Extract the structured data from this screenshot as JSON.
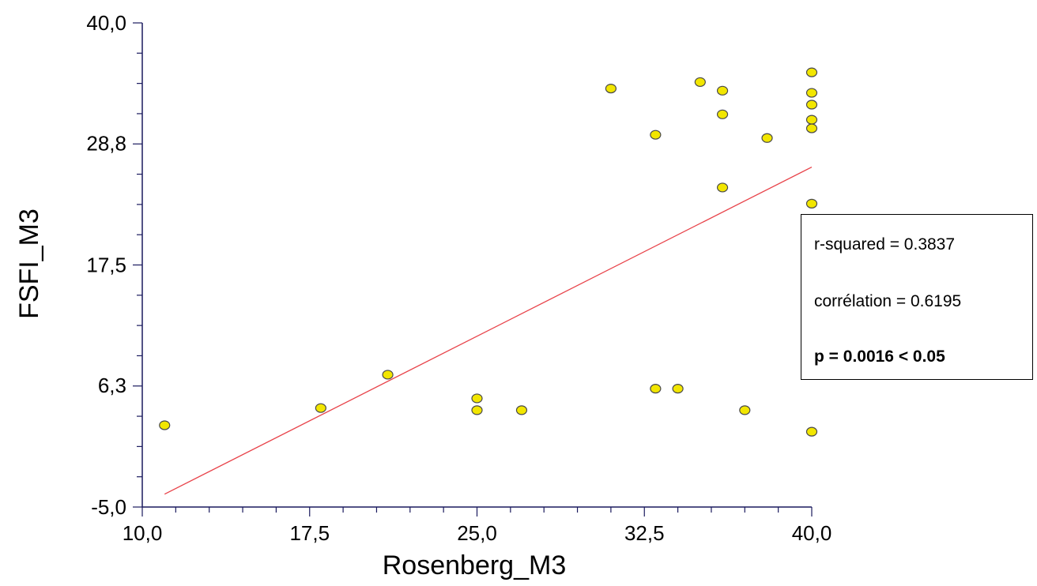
{
  "chart_data": {
    "type": "scatter",
    "xlabel": "Rosenberg_M3",
    "ylabel": "FSFI_M3",
    "xlim": [
      10.0,
      40.0
    ],
    "ylim": [
      -5.0,
      40.0
    ],
    "x_ticks": [
      "10,0",
      "17,5",
      "25,0",
      "32,5",
      "40,0"
    ],
    "y_ticks": [
      "40,0",
      "28,8",
      "17,5",
      "6,3",
      "-5,0"
    ],
    "x_tick_values": [
      10.0,
      17.5,
      25.0,
      32.5,
      40.0
    ],
    "y_tick_values": [
      40.0,
      28.8,
      17.5,
      6.3,
      -5.0
    ],
    "grid": false,
    "points": [
      {
        "x": 11.0,
        "y": 2.6
      },
      {
        "x": 18.0,
        "y": 4.2
      },
      {
        "x": 21.0,
        "y": 7.3
      },
      {
        "x": 25.0,
        "y": 5.1
      },
      {
        "x": 25.0,
        "y": 4.0
      },
      {
        "x": 27.0,
        "y": 4.0
      },
      {
        "x": 31.0,
        "y": 33.9
      },
      {
        "x": 33.0,
        "y": 29.6
      },
      {
        "x": 33.0,
        "y": 6.0
      },
      {
        "x": 34.0,
        "y": 6.0
      },
      {
        "x": 35.0,
        "y": 34.5
      },
      {
        "x": 36.0,
        "y": 33.7
      },
      {
        "x": 36.0,
        "y": 31.5
      },
      {
        "x": 36.0,
        "y": 24.7
      },
      {
        "x": 37.0,
        "y": 4.0
      },
      {
        "x": 38.0,
        "y": 29.3
      },
      {
        "x": 40.0,
        "y": 35.4
      },
      {
        "x": 40.0,
        "y": 33.5
      },
      {
        "x": 40.0,
        "y": 32.4
      },
      {
        "x": 40.0,
        "y": 31.0
      },
      {
        "x": 40.0,
        "y": 30.2
      },
      {
        "x": 40.0,
        "y": 23.2
      },
      {
        "x": 40.0,
        "y": 2.0
      }
    ],
    "regression_line": {
      "x": [
        11.0,
        40.0
      ],
      "y": [
        -3.8,
        26.6
      ]
    },
    "annotations": {
      "r_squared": "r-squared = 0.3837",
      "correlation": "corrélation = 0.6195",
      "p_value": "p = 0.0016 < 0.05"
    },
    "colors": {
      "point_fill": "#f2e600",
      "point_stroke": "#4a4a4a",
      "line": "#e8434a",
      "axis": "#1a1a5e"
    }
  }
}
